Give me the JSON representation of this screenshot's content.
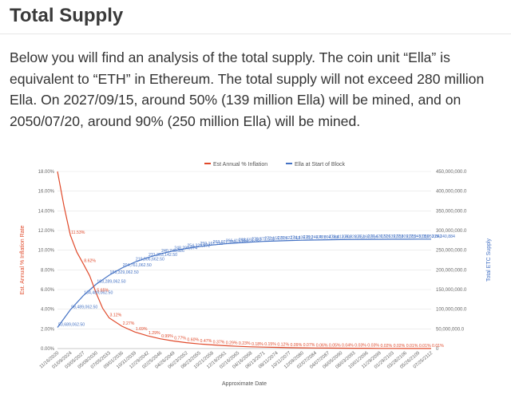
{
  "page": {
    "title": "Total Supply",
    "intro": "Below you will find an analysis of the total supply. The coin unit “Ella” is equivalent to “ETH” in Ethereum. The total supply will not exceed 280 million Ella. On 2027/09/15, around 50% (139 million Ella) will be mined, and on 2050/07/20, around 90% (250 million Ella) will be mined."
  },
  "chart_data": {
    "type": "line",
    "title": "",
    "xlabel": "Approximate Date",
    "ylabel_left": "Est. Annual % Inflation Rate",
    "ylabel_right": "Total ETC Supply",
    "legend_position": "top-center",
    "grid": true,
    "colors": {
      "inflation": "#e0492a",
      "supply": "#4472c4"
    },
    "y_left": {
      "min": 0,
      "max": 18,
      "ticks": [
        "0.00%",
        "2.00%",
        "4.00%",
        "6.00%",
        "8.00%",
        "10.00%",
        "12.00%",
        "14.00%",
        "16.00%",
        "18.00%"
      ]
    },
    "y_right": {
      "min": 0,
      "max": 450000000,
      "ticks": [
        "0",
        "50,000,000.0",
        "100,000,000.0",
        "150,000,000.0",
        "200,000,000.0",
        "250,000,000.0",
        "300,000,000.0",
        "350,000,000.0",
        "400,000,000.0",
        "450,000,000.0"
      ]
    },
    "x_tick_labels": [
      "11/16/2020",
      "01/09/2024",
      "03/05/2027",
      "05/08/2030",
      "07/05/2033",
      "09/01/2036",
      "10/31/2039",
      "12/29/2042",
      "02/25/2046",
      "04/26/2049",
      "06/23/2052",
      "08/23/2055",
      "10/21/2058",
      "12/19/2061",
      "02/16/2065",
      "04/16/2068",
      "06/13/2071",
      "08/11/2074",
      "10/11/2077",
      "12/09/2080",
      "02/07/2084",
      "04/07/2087",
      "06/05/2090",
      "08/03/2093",
      "10/01/2096",
      "11/29/2099",
      "01/29/2103",
      "03/28/2106",
      "05/26/2109",
      "07/25/2112"
    ],
    "series": [
      {
        "name": "Est Annual % Inflation",
        "axis": "left",
        "x_index": [
          0,
          0.5,
          1,
          1.5,
          2,
          2.5,
          3,
          3.5,
          4,
          5,
          6,
          7,
          8,
          9,
          10,
          11,
          12,
          13,
          14,
          15,
          16,
          17,
          18,
          19,
          20,
          21,
          22,
          23,
          24,
          25,
          26,
          27,
          28,
          29
        ],
        "values": [
          18.0,
          14.5,
          11.53,
          9.8,
          8.62,
          7.4,
          5.65,
          4.1,
          3.12,
          2.27,
          1.69,
          1.29,
          0.99,
          0.77,
          0.6,
          0.47,
          0.37,
          0.29,
          0.23,
          0.18,
          0.15,
          0.12,
          0.09,
          0.07,
          0.06,
          0.05,
          0.04,
          0.03,
          0.03,
          0.02,
          0.02,
          0.01,
          0.01,
          0.01
        ],
        "point_labels": [
          {
            "i": 1,
            "text": "11.53%"
          },
          {
            "i": 2,
            "text": "8.62%"
          },
          {
            "i": 3,
            "text": "5.65%"
          },
          {
            "i": 4,
            "text": "3.12%"
          },
          {
            "i": 5,
            "text": "2.27%"
          },
          {
            "i": 6,
            "text": "1.69%"
          },
          {
            "i": 7,
            "text": "1.29%"
          },
          {
            "i": 8,
            "text": "0.99%"
          },
          {
            "i": 9,
            "text": "0.77%"
          },
          {
            "i": 10,
            "text": "0.60%"
          },
          {
            "i": 11,
            "text": "0.47%"
          },
          {
            "i": 12,
            "text": "0.37%"
          },
          {
            "i": 13,
            "text": "0.29%"
          },
          {
            "i": 14,
            "text": "0.23%"
          },
          {
            "i": 15,
            "text": "0.18%"
          },
          {
            "i": 16,
            "text": "0.15%"
          },
          {
            "i": 17,
            "text": "0.12%"
          },
          {
            "i": 18,
            "text": "0.09%"
          },
          {
            "i": 19,
            "text": "0.07%"
          },
          {
            "i": 20,
            "text": "0.06%"
          },
          {
            "i": 21,
            "text": "0.05%"
          },
          {
            "i": 22,
            "text": "0.04%"
          },
          {
            "i": 23,
            "text": "0.03%"
          },
          {
            "i": 24,
            "text": "0.03%"
          },
          {
            "i": 25,
            "text": "0.02%"
          },
          {
            "i": 26,
            "text": "0.02%"
          },
          {
            "i": 27,
            "text": "0.01%"
          },
          {
            "i": 28,
            "text": "0.01%"
          },
          {
            "i": 29,
            "text": "0.01%"
          }
        ]
      },
      {
        "name": "Ella at Start of Block",
        "axis": "right",
        "x_index": [
          0,
          1,
          2,
          3,
          4,
          5,
          6,
          7,
          8,
          9,
          10,
          11,
          12,
          13,
          14,
          15,
          16,
          17,
          18,
          19,
          20,
          21,
          22,
          23,
          24,
          25,
          26,
          27,
          28,
          29
        ],
        "values": [
          53689062,
          98489062,
          134489062,
          163289062,
          186329062,
          204761062,
          219506662,
          231303142,
          240740326,
          248290074,
          254329872,
          259161710,
          263027180,
          266119556,
          268593457,
          270572578,
          272155875,
          273422512,
          274435822,
          275246470,
          275894988,
          276413802,
          276828853,
          277160894,
          277426526,
          277639031,
          277809035,
          277945039,
          278053842,
          278140884
        ],
        "point_labels": [
          {
            "i": 0,
            "text": "53,689,062.50"
          },
          {
            "i": 1,
            "text": "98,489,062.50"
          },
          {
            "i": 2,
            "text": "134,489,062.50"
          },
          {
            "i": 3,
            "text": "163,289,062.50"
          },
          {
            "i": 4,
            "text": "186,329,062.50"
          },
          {
            "i": 5,
            "text": "204,761,062.50"
          },
          {
            "i": 6,
            "text": "219,506,662.50"
          },
          {
            "i": 7,
            "text": "231,303,142.50"
          },
          {
            "i": 8,
            "text": "240,740,326"
          },
          {
            "i": 9,
            "text": "248,290,074"
          },
          {
            "i": 10,
            "text": "254,329,872"
          },
          {
            "i": 11,
            "text": "259,161,710"
          },
          {
            "i": 12,
            "text": "263,027,180"
          },
          {
            "i": 13,
            "text": "266,119,556"
          },
          {
            "i": 14,
            "text": "268,593,457"
          },
          {
            "i": 15,
            "text": "270,572,578"
          },
          {
            "i": 16,
            "text": "272,155,875"
          },
          {
            "i": 17,
            "text": "273,422,512"
          },
          {
            "i": 18,
            "text": "274,435,822"
          },
          {
            "i": 19,
            "text": "275,246,470"
          },
          {
            "i": 20,
            "text": "275,894,988"
          },
          {
            "i": 21,
            "text": "276,413,802"
          },
          {
            "i": 22,
            "text": "276,828,853"
          },
          {
            "i": 23,
            "text": "277,160,894"
          },
          {
            "i": 24,
            "text": "277,426,526"
          },
          {
            "i": 25,
            "text": "277,639,031"
          },
          {
            "i": 26,
            "text": "277,809,035"
          },
          {
            "i": 27,
            "text": "277,945,039"
          },
          {
            "i": 28,
            "text": "278,053,842"
          },
          {
            "i": 29,
            "text": "278,140,884"
          }
        ]
      }
    ]
  }
}
